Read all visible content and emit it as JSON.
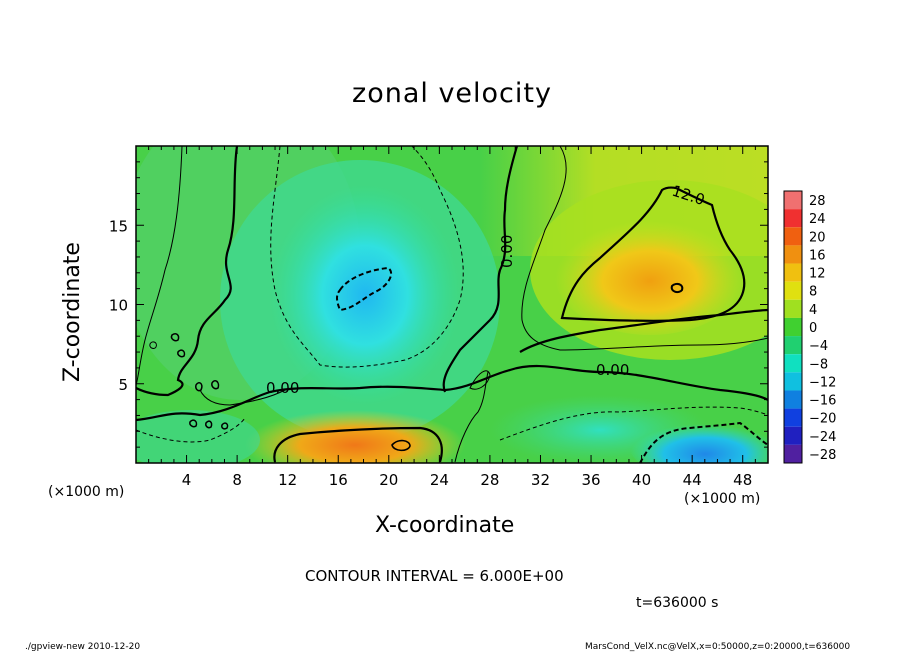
{
  "chart_data": {
    "type": "heatmap",
    "title": "zonal velocity",
    "xlabel": "X-coordinate",
    "ylabel": "Z-coordinate",
    "x_unit": "(×1000 m)",
    "xlim": [
      0,
      50
    ],
    "ylim": [
      0,
      20
    ],
    "x_ticks": [
      4,
      8,
      12,
      16,
      20,
      24,
      28,
      32,
      36,
      40,
      44,
      48
    ],
    "y_ticks": [
      5,
      10,
      15
    ],
    "colorbar": {
      "levels": [
        28,
        24,
        20,
        16,
        12,
        8,
        4,
        0,
        -4,
        -8,
        -12,
        -16,
        -20,
        -24,
        -28
      ],
      "colors": [
        "#f07070",
        "#f03030",
        "#f06010",
        "#f09010",
        "#f0c010",
        "#e0e010",
        "#a0e020",
        "#40d030",
        "#20d070",
        "#10e0c0",
        "#10c0e0",
        "#1080e0",
        "#1040e0",
        "#2020c0",
        "#5020a0"
      ]
    },
    "contour_interval": "CONTOUR INTERVAL = 6.000E+00",
    "contour_labels": [
      "12.0",
      "0.00",
      "0.00",
      "0.00"
    ],
    "time": "t=636000 s",
    "footer_left": "./gpview-new  2010-12-20",
    "footer_right": "MarsCond_VelX.nc@VelX,x=0:50000,z=0:20000,t=636000"
  }
}
